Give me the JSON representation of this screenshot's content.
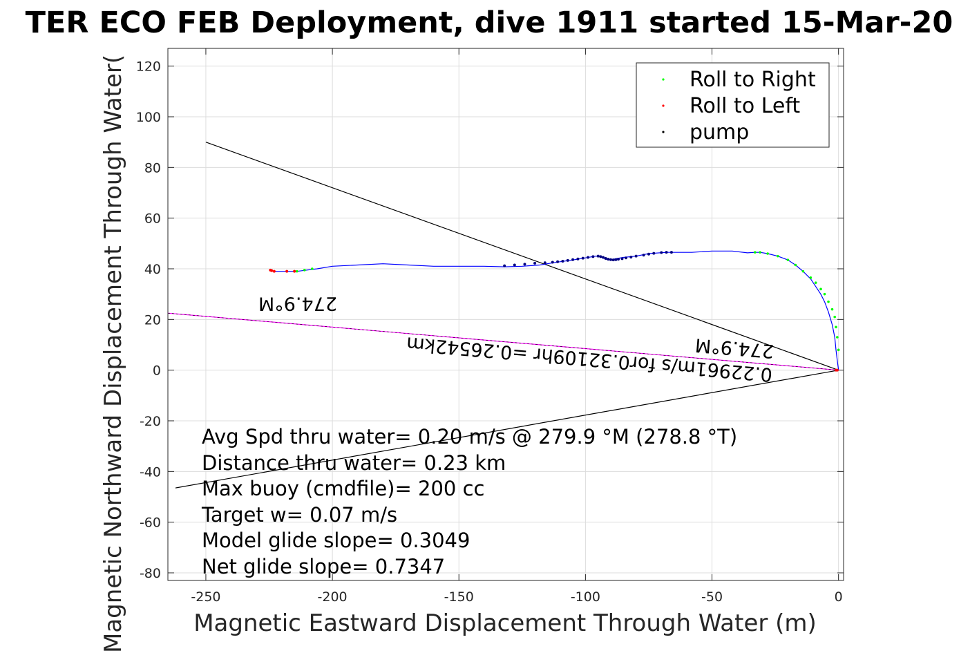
{
  "chart_data": {
    "type": "scatter",
    "title": "TER ECO FEB Deployment, dive 1911 started 15-Mar-20",
    "xlabel": "Magnetic Eastward Displacement Through Water (m)",
    "ylabel": "Magnetic Northward Displacement Through Water(",
    "xlim": [
      -265,
      2
    ],
    "ylim": [
      -83,
      127
    ],
    "xticks": [
      -250,
      -200,
      -150,
      -100,
      -50,
      0
    ],
    "yticks": [
      -80,
      -60,
      -40,
      -20,
      0,
      20,
      40,
      60,
      80,
      100,
      120
    ],
    "grid": true,
    "legend": {
      "position": "top-right",
      "entries": [
        "Roll to Right",
        "Roll to Left",
        "pump"
      ]
    },
    "colors": {
      "track": "#0000ff",
      "roll_right": "#00ff00",
      "roll_left": "#ff0000",
      "pump": "#000080",
      "heading": "#ff00ff",
      "line": "#000000"
    },
    "track": {
      "x": [
        0,
        -0.5,
        -1,
        -1.5,
        -2.5,
        -4,
        -5.5,
        -7,
        -9,
        -11,
        -14,
        -17,
        -20,
        -24,
        -28,
        -31,
        -33,
        -36,
        -42,
        -50,
        -58,
        -68,
        -75,
        -80,
        -85,
        -88,
        -90,
        -92,
        -94,
        -96,
        -100,
        -105,
        -112,
        -118,
        -125,
        -132,
        -140,
        -150,
        -160,
        -170,
        -180,
        -190,
        -200,
        -206,
        -210,
        -214,
        -218,
        -221,
        -223,
        -224
      ],
      "y": [
        0,
        4,
        8,
        13,
        18,
        23,
        27,
        30,
        33,
        36,
        39,
        41.5,
        43.5,
        45,
        46,
        46.5,
        46.5,
        46.3,
        47,
        47,
        46.5,
        46.5,
        46,
        45,
        44.5,
        44,
        43.5,
        43.8,
        44.8,
        45,
        44.3,
        43.5,
        42.5,
        41.5,
        41,
        40.8,
        41,
        41,
        41,
        41.5,
        42,
        41.5,
        41,
        40,
        39.5,
        39,
        39,
        39,
        39,
        39.2
      ]
    },
    "roll_right": {
      "x": [
        0,
        -0.5,
        -1,
        -1.5,
        -2.5,
        -4,
        -5.5,
        -7,
        -9,
        -11,
        -14,
        -17,
        -20,
        -24,
        -28,
        -31,
        -33,
        -208,
        -211,
        -214
      ],
      "y": [
        8,
        13,
        17,
        21,
        24,
        27,
        30,
        32,
        34.5,
        36.5,
        39,
        41.5,
        43.5,
        45,
        46,
        46.5,
        46.5,
        40,
        39.5,
        39
      ]
    },
    "roll_left": {
      "x": [
        -215,
        -218,
        -223,
        -224,
        -224.5,
        -1,
        -0.5
      ],
      "y": [
        39,
        39,
        39,
        39.3,
        39.5,
        0,
        0
      ]
    },
    "pump": {
      "x": [
        -66,
        -68,
        -70,
        -73,
        -75,
        -77,
        -80,
        -82,
        -84,
        -85.5,
        -87,
        -88,
        -89,
        -90,
        -91,
        -92,
        -93,
        -94,
        -95,
        -97,
        -99,
        -101,
        -103,
        -105,
        -107,
        -109,
        -111,
        -113,
        -116,
        -120,
        -124,
        -128,
        -132
      ],
      "y": [
        46.5,
        46.5,
        46.4,
        46.1,
        45.8,
        45.4,
        45,
        44.6,
        44.3,
        44,
        43.8,
        43.6,
        43.5,
        43.6,
        43.8,
        44.1,
        44.5,
        44.8,
        45,
        44.8,
        44.5,
        44.2,
        43.9,
        43.6,
        43.3,
        43,
        42.8,
        42.6,
        42.4,
        42.2,
        41.8,
        41.5,
        41.2
      ]
    },
    "lines": [
      {
        "x": [
          -250,
          0
        ],
        "y": [
          90,
          0
        ]
      },
      {
        "x": [
          -262,
          0
        ],
        "y": [
          -46.5,
          0
        ]
      }
    ],
    "heading_line": {
      "x": [
        -265,
        0
      ],
      "y": [
        22.5,
        0
      ]
    },
    "annotations": {
      "heading_far": "274.9°M",
      "heading_near": "274.9°M",
      "speed": "0.22961m/s for0.32109hr =0.26542km"
    },
    "textbox": [
      "Avg Spd thru water=  0.20 m/s @ 279.9 °M (278.8 °T)",
      "Distance thru water=  0.23 km",
      "Max buoy (cmdfile)= 200 cc",
      "Target w= 0.07 m/s",
      "Model glide slope= 0.3049",
      "Net glide slope= 0.7347"
    ]
  }
}
